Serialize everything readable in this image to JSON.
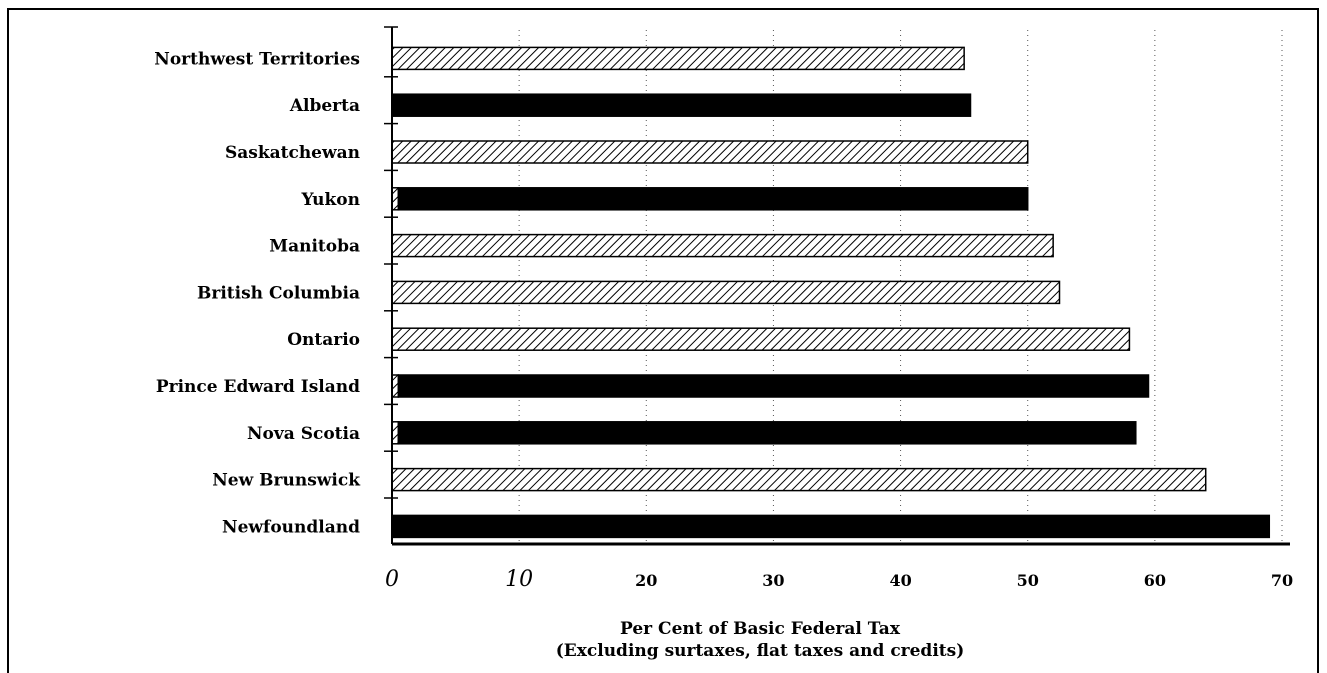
{
  "chart_data": {
    "type": "bar",
    "orientation": "horizontal",
    "categories": [
      "Northwest Territories",
      "Alberta",
      "Saskatchewan",
      "Yukon",
      "Manitoba",
      "British  Columbia",
      "Ontario",
      "Prince  Edward  Island",
      "Nova Scotia",
      "New Brunswick",
      "Newfoundland"
    ],
    "values": [
      45,
      45.5,
      50,
      50,
      52,
      52.5,
      58,
      59.5,
      58.5,
      64,
      69
    ],
    "hatched_portion": [
      45,
      0,
      50,
      0.5,
      52,
      52.5,
      58,
      0.5,
      0.5,
      64,
      0
    ],
    "colors": {
      "solid": "#000000",
      "hatch": "#000000"
    },
    "x_ticks": [
      {
        "value": 0,
        "label": "0",
        "style": "italic"
      },
      {
        "value": 10,
        "label": "10",
        "style": "italic"
      },
      {
        "value": 20,
        "label": "20",
        "style": "bold"
      },
      {
        "value": 30,
        "label": "30",
        "style": "bold"
      },
      {
        "value": 40,
        "label": "40",
        "style": "bold"
      },
      {
        "value": 50,
        "label": "50",
        "style": "bold"
      },
      {
        "value": 60,
        "label": "60",
        "style": "bold"
      },
      {
        "value": 70,
        "label": "70",
        "style": "bold"
      }
    ],
    "xlim": [
      0,
      70
    ],
    "xlabel_lines": [
      "Per Cent of Basic Federal Tax",
      "(Excluding surtaxes, flat taxes and credits)"
    ],
    "grid": "vertical-dotted",
    "legend": "none"
  }
}
